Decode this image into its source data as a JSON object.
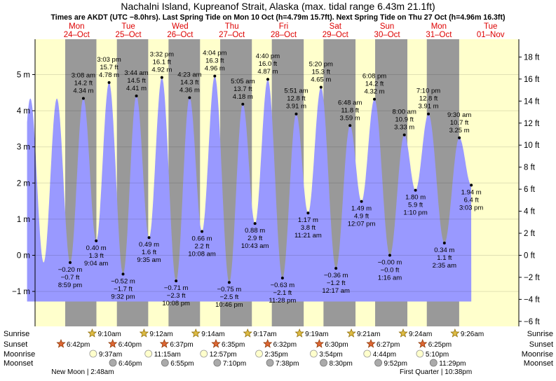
{
  "chart_data": {
    "type": "area",
    "title": "Nachalni Island, Kupreanof Strait, Alaska (max. tidal range 6.43m 21.1ft)",
    "subtitle": "Times are AKDT (UTC −8.0hrs). Last Spring Tide on Mon 10 Oct (h=4.79m 15.7ft). Next Spring Tide on Thu 27 Oct (h=4.96m 16.3ft)",
    "y_left_label": "m",
    "y_right_label": "ft",
    "ylim_m": [
      -1.9,
      5.85
    ],
    "x_start_hour": 0,
    "x_end_hour": 192,
    "curve_start_hour": 1,
    "left_ticks": [
      "−1 m",
      "0 m",
      "1 m",
      "2 m",
      "3 m",
      "4 m",
      "5 m"
    ],
    "left_tick_values": [
      -1,
      0,
      1,
      2,
      3,
      4,
      5
    ],
    "right_ticks": [
      "−6 ft",
      "−4 ft",
      "−2 ft",
      "0 ft",
      "2 ft",
      "4 ft",
      "6 ft",
      "8 ft",
      "10 ft",
      "12 ft",
      "14 ft",
      "16 ft",
      "18 ft"
    ],
    "right_tick_values": [
      -6,
      -4,
      -2,
      0,
      2,
      4,
      6,
      8,
      10,
      12,
      14,
      16,
      18
    ],
    "days": [
      {
        "dow": "Mon",
        "date": "24–Oct",
        "highlight": true,
        "sunrise": null,
        "sunset": "6:42pm",
        "moonrise": null,
        "moonset": null,
        "sunrise_h": null,
        "sunset_h": 18.7,
        "moonrise_h": null,
        "moonset_h": null
      },
      {
        "dow": "Tue",
        "date": "25–Oct",
        "highlight": false,
        "sunrise": "9:10am",
        "sunset": "6:40pm",
        "moonrise": "9:37am",
        "moonset": "6:46pm",
        "sunrise_h": 33.17,
        "sunset_h": 42.67,
        "moonrise_h": 33.62,
        "moonset_h": 42.77
      },
      {
        "dow": "Wed",
        "date": "26–Oct",
        "highlight": false,
        "sunrise": "9:12am",
        "sunset": "6:37pm",
        "moonrise": "11:15am",
        "moonset": "6:55pm",
        "sunrise_h": 57.2,
        "sunset_h": 66.62,
        "moonrise_h": 59.25,
        "moonset_h": 66.92
      },
      {
        "dow": "Thu",
        "date": "27–Oct",
        "highlight": false,
        "sunrise": "9:14am",
        "sunset": "6:35pm",
        "moonrise": "12:57pm",
        "moonset": "7:10pm",
        "sunrise_h": 81.23,
        "sunset_h": 90.58,
        "moonrise_h": 84.95,
        "moonset_h": 91.17
      },
      {
        "dow": "Fri",
        "date": "28–Oct",
        "highlight": false,
        "sunrise": "9:17am",
        "sunset": "6:32pm",
        "moonrise": "2:35pm",
        "moonset": "7:38pm",
        "sunrise_h": 105.28,
        "sunset_h": 114.53,
        "moonrise_h": 110.58,
        "moonset_h": 115.63
      },
      {
        "dow": "Sat",
        "date": "29–Oct",
        "highlight": false,
        "sunrise": "9:19am",
        "sunset": "6:30pm",
        "moonrise": "3:54pm",
        "moonset": "8:30pm",
        "sunrise_h": 129.32,
        "sunset_h": 138.5,
        "moonrise_h": 135.9,
        "moonset_h": 140.5
      },
      {
        "dow": "Sun",
        "date": "30–Oct",
        "highlight": false,
        "sunrise": "9:21am",
        "sunset": "6:27pm",
        "moonrise": "4:44pm",
        "moonset": "9:52pm",
        "sunrise_h": 153.35,
        "sunset_h": 162.45,
        "moonrise_h": 160.73,
        "moonset_h": 165.87
      },
      {
        "dow": "Mon",
        "date": "31–Oct",
        "highlight": false,
        "sunrise": "9:24am",
        "sunset": "6:25pm",
        "moonrise": "5:10pm",
        "moonset": "11:29pm",
        "sunrise_h": 177.4,
        "sunset_h": 186.42,
        "moonrise_h": 185.17,
        "moonset_h": 191.48
      },
      {
        "dow": "Tue",
        "date": "01–Nov",
        "highlight": false,
        "sunrise": "9:26am",
        "sunset": null,
        "moonrise": null,
        "moonset": null,
        "sunrise_h": 201.43,
        "sunset_h": null,
        "moonrise_h": null,
        "moonset_h": null
      }
    ],
    "tides": [
      {
        "hour": 20.98,
        "m": -0.2,
        "label_m": "−0.20 m",
        "label_ft": "−0.7 ft",
        "time": "8:59 pm",
        "type": "low"
      },
      {
        "hour": 27.13,
        "m": 4.34,
        "label_m": "4.34 m",
        "label_ft": "14.2 ft",
        "time": "3:08 am",
        "type": "high"
      },
      {
        "hour": 33.07,
        "m": 0.4,
        "label_m": "0.40 m",
        "label_ft": "1.3 ft",
        "time": "9:04 am",
        "type": "low"
      },
      {
        "hour": 39.05,
        "m": 4.78,
        "label_m": "4.78 m",
        "label_ft": "15.7 ft",
        "time": "3:03 pm",
        "type": "high"
      },
      {
        "hour": 45.53,
        "m": -0.52,
        "label_m": "−0.52 m",
        "label_ft": "−1.7 ft",
        "time": "9:32 pm",
        "type": "low"
      },
      {
        "hour": 51.73,
        "m": 4.41,
        "label_m": "4.41 m",
        "label_ft": "14.5 ft",
        "time": "3:44 am",
        "type": "high"
      },
      {
        "hour": 57.58,
        "m": 0.49,
        "label_m": "0.49 m",
        "label_ft": "1.6 ft",
        "time": "9:35 am",
        "type": "low"
      },
      {
        "hour": 63.53,
        "m": 4.92,
        "label_m": "4.92 m",
        "label_ft": "16.1 ft",
        "time": "3:32 pm",
        "type": "high"
      },
      {
        "hour": 70.13,
        "m": -0.71,
        "label_m": "−0.71 m",
        "label_ft": "−2.3 ft",
        "time": "10:08 pm",
        "type": "low"
      },
      {
        "hour": 76.38,
        "m": 4.36,
        "label_m": "4.36 m",
        "label_ft": "14.3 ft",
        "time": "4:23 am",
        "type": "high"
      },
      {
        "hour": 82.13,
        "m": 0.66,
        "label_m": "0.66 m",
        "label_ft": "2.2 ft",
        "time": "10:08 am",
        "type": "low"
      },
      {
        "hour": 88.07,
        "m": 4.96,
        "label_m": "4.96 m",
        "label_ft": "16.3 ft",
        "time": "4:04 pm",
        "type": "high"
      },
      {
        "hour": 94.77,
        "m": -0.75,
        "label_m": "−0.75 m",
        "label_ft": "−2.5 ft",
        "time": "10:46 pm",
        "type": "low"
      },
      {
        "hour": 101.08,
        "m": 4.18,
        "label_m": "4.18 m",
        "label_ft": "13.7 ft",
        "time": "5:05 am",
        "type": "high"
      },
      {
        "hour": 106.72,
        "m": 0.88,
        "label_m": "0.88 m",
        "label_ft": "2.9 ft",
        "time": "10:43 am",
        "type": "low"
      },
      {
        "hour": 112.67,
        "m": 4.87,
        "label_m": "4.87 m",
        "label_ft": "16.0 ft",
        "time": "4:40 pm",
        "type": "high"
      },
      {
        "hour": 119.47,
        "m": -0.63,
        "label_m": "−0.63 m",
        "label_ft": "−2.1 ft",
        "time": "11:28 pm",
        "type": "low"
      },
      {
        "hour": 125.85,
        "m": 3.91,
        "label_m": "3.91 m",
        "label_ft": "12.8 ft",
        "time": "5:51 am",
        "type": "high"
      },
      {
        "hour": 131.35,
        "m": 1.17,
        "label_m": "1.17 m",
        "label_ft": "3.8 ft",
        "time": "11:21 am",
        "type": "low"
      },
      {
        "hour": 137.33,
        "m": 4.65,
        "label_m": "4.65 m",
        "label_ft": "15.3 ft",
        "time": "5:20 pm",
        "type": "high"
      },
      {
        "hour": 144.28,
        "m": -0.36,
        "label_m": "−0.36 m",
        "label_ft": "−1.2 ft",
        "time": "12:17 am",
        "type": "low"
      },
      {
        "hour": 150.8,
        "m": 3.59,
        "label_m": "3.59 m",
        "label_ft": "11.8 ft",
        "time": "6:48 am",
        "type": "high"
      },
      {
        "hour": 156.12,
        "m": 1.49,
        "label_m": "1.49 m",
        "label_ft": "4.9 ft",
        "time": "12:07 pm",
        "type": "low"
      },
      {
        "hour": 162.13,
        "m": 4.32,
        "label_m": "4.32 m",
        "label_ft": "14.2 ft",
        "time": "6:08 pm",
        "type": "high"
      },
      {
        "hour": 169.27,
        "m": 0.0,
        "label_m": "−0.00 m",
        "label_ft": "−0.0 ft",
        "time": "1:16 am",
        "type": "low"
      },
      {
        "hour": 176.0,
        "m": 3.33,
        "label_m": "3.33 m",
        "label_ft": "10.9 ft",
        "time": "8:00 am",
        "type": "high"
      },
      {
        "hour": 181.17,
        "m": 1.8,
        "label_m": "1.80 m",
        "label_ft": "5.9 ft",
        "time": "1:10 pm",
        "type": "low"
      },
      {
        "hour": 187.17,
        "m": 3.91,
        "label_m": "3.91 m",
        "label_ft": "12.8 ft",
        "time": "7:10 pm",
        "type": "high"
      },
      {
        "hour": 194.58,
        "m": 0.34,
        "label_m": "0.34 m",
        "label_ft": "1.1 ft",
        "time": "2:35 am",
        "type": "low"
      },
      {
        "hour": 201.5,
        "m": 3.25,
        "label_m": "3.25 m",
        "label_ft": "10.7 ft",
        "time": "9:30 am",
        "type": "high"
      },
      {
        "hour": 207.05,
        "m": 1.94,
        "label_m": "1.94 m",
        "label_ft": "6.4 ft",
        "time": "3:03 pm",
        "type": "low"
      }
    ],
    "curve_end_hour": 207.05,
    "row_labels": {
      "sunrise": "Sunrise",
      "sunset": "Sunset",
      "moonrise": "Moonrise",
      "moonset": "Moonset"
    },
    "moon_phases": [
      {
        "label": "New Moon | 2:48am",
        "hour": 26.8
      },
      {
        "label": "First Quarter | 10:38pm",
        "hour": 190.6
      }
    ],
    "colors": {
      "day": "#ffffcc",
      "night": "#999999",
      "water": "#9999ff",
      "text_red": "#dd0000",
      "sun_star": "#ddbb44",
      "sunset_star": "#dd6633",
      "moonrise": "#ffffcc",
      "moonset": "#aaaaaa"
    }
  }
}
